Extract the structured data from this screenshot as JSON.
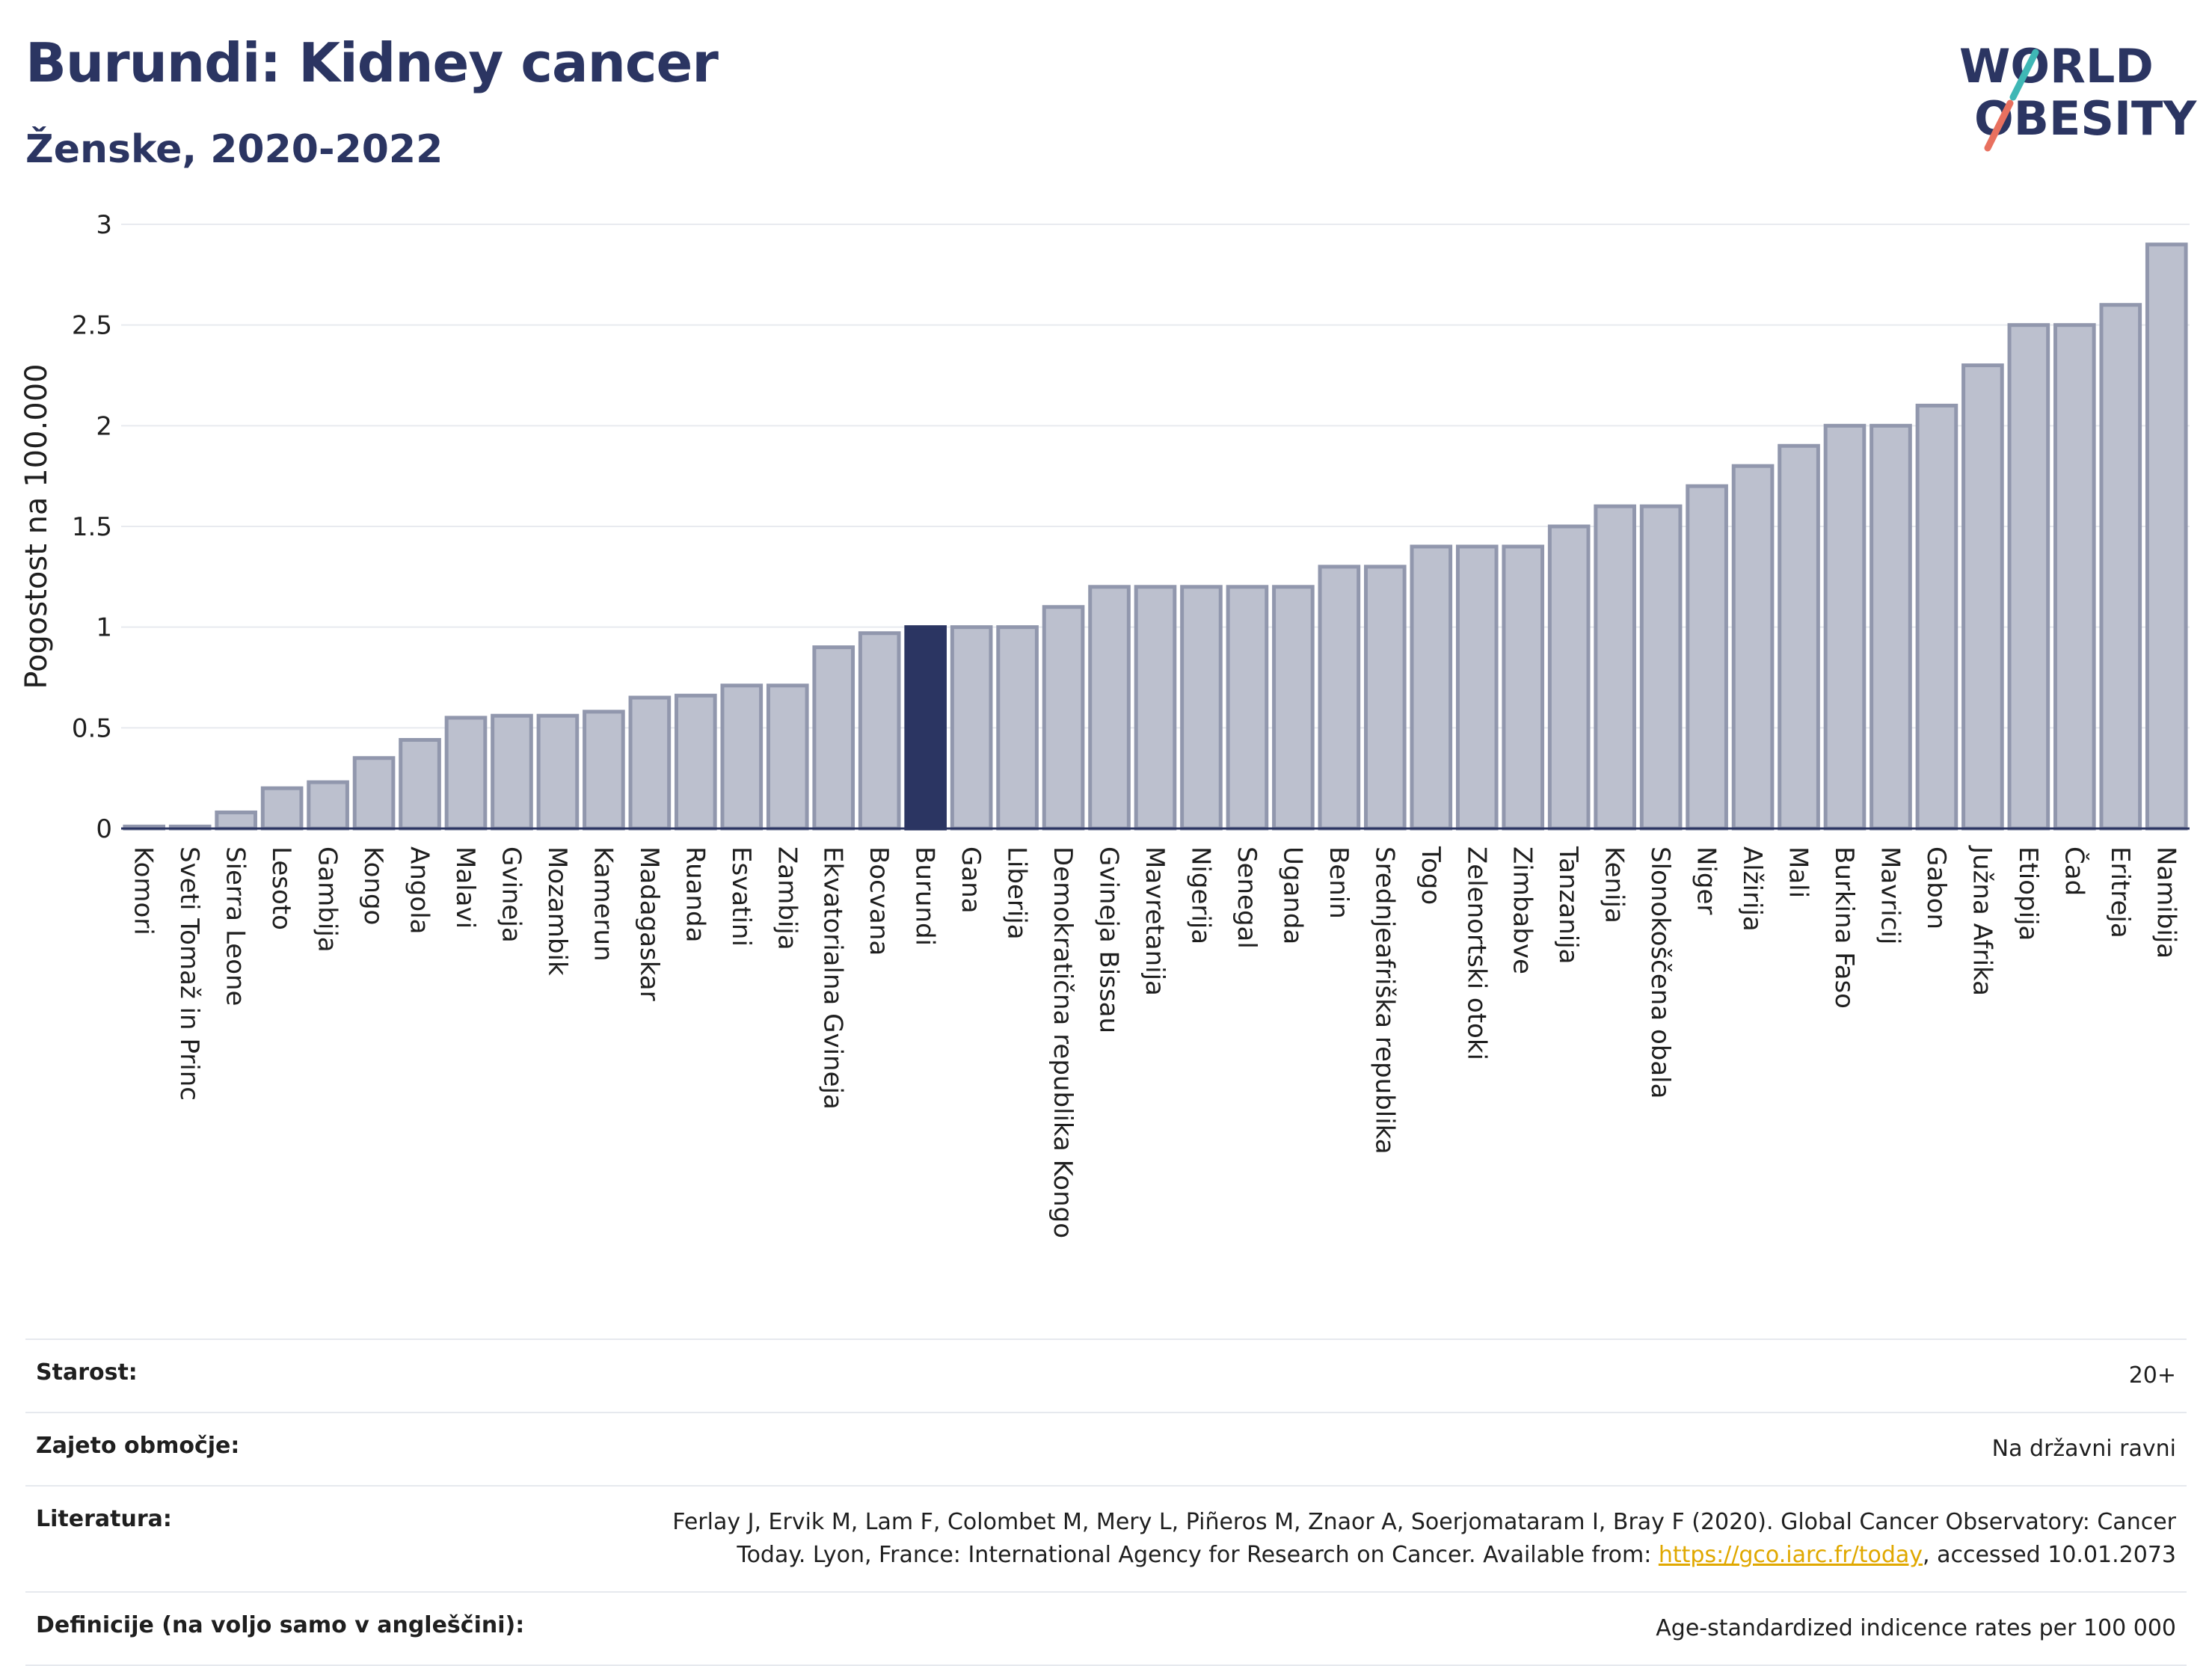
{
  "header": {
    "title": "Burundi: Kidney cancer",
    "subtitle": "Ženske, 2020-2022"
  },
  "logo": {
    "line1": "WORLD",
    "line2": "OBESITY"
  },
  "chart_data": {
    "type": "bar",
    "ylabel": "Pogostost na 100.000",
    "xlabel": "",
    "ylim": [
      0,
      3
    ],
    "yticks": [
      0,
      0.5,
      1,
      1.5,
      2,
      2.5,
      3
    ],
    "ytick_labels": [
      "0",
      "0.5",
      "1",
      "1.5",
      "2",
      "2.5",
      "3"
    ],
    "grid": true,
    "highlight": "Burundi",
    "colors": {
      "bar": "#bcc0ce",
      "bar_edge": "#9197ad",
      "highlight": "#2b3562"
    },
    "categories": [
      "Komori",
      "Sveti Tomaž in Princ",
      "Sierra Leone",
      "Lesoto",
      "Gambija",
      "Kongo",
      "Angola",
      "Malavi",
      "Gvineja",
      "Mozambik",
      "Kamerun",
      "Madagaskar",
      "Ruanda",
      "Esvatini",
      "Zambija",
      "Ekvatorialna Gvineja",
      "Bocvana",
      "Burundi",
      "Gana",
      "Liberija",
      "Demokratična republika Kongo",
      "Gvineja Bissau",
      "Mavretanija",
      "Nigerija",
      "Senegal",
      "Uganda",
      "Benin",
      "Srednjeafriška republika",
      "Togo",
      "Zelenortski otoki",
      "Zimbabve",
      "Tanzanija",
      "Kenija",
      "Slonokoščena obala",
      "Niger",
      "Alžirija",
      "Mali",
      "Burkina Faso",
      "Mavricij",
      "Gabon",
      "Južna Afrika",
      "Etiopija",
      "Čad",
      "Eritreja",
      "Namibija"
    ],
    "values": [
      0.01,
      0.01,
      0.08,
      0.2,
      0.23,
      0.35,
      0.44,
      0.55,
      0.56,
      0.56,
      0.58,
      0.65,
      0.66,
      0.71,
      0.71,
      0.9,
      0.97,
      1.0,
      1.0,
      1.0,
      1.1,
      1.2,
      1.2,
      1.2,
      1.2,
      1.2,
      1.3,
      1.3,
      1.4,
      1.4,
      1.4,
      1.5,
      1.6,
      1.6,
      1.7,
      1.8,
      1.9,
      2.0,
      2.0,
      2.1,
      2.3,
      2.5,
      2.5,
      2.6,
      2.9
    ]
  },
  "meta": {
    "age_label": "Starost:",
    "age_value": "20+",
    "coverage_label": "Zajeto območje:",
    "coverage_value": "Na državni ravni",
    "refs_label": "Literatura:",
    "refs_text1": "Ferlay J, Ervik M, Lam F, Colombet M, Mery L, Piñeros M, Znaor A, Soerjomataram I, Bray F (2020). Global Cancer Observatory: Cancer Today. Lyon, France: International Agency for Research on Cancer. Available from: ",
    "refs_link": "https://gco.iarc.fr/today",
    "refs_text2": ", accessed 10.01.2073",
    "defs_label": "Definicije (na voljo samo v angleščini):",
    "defs_value": "Age-standardized indicence rates per 100 000"
  }
}
